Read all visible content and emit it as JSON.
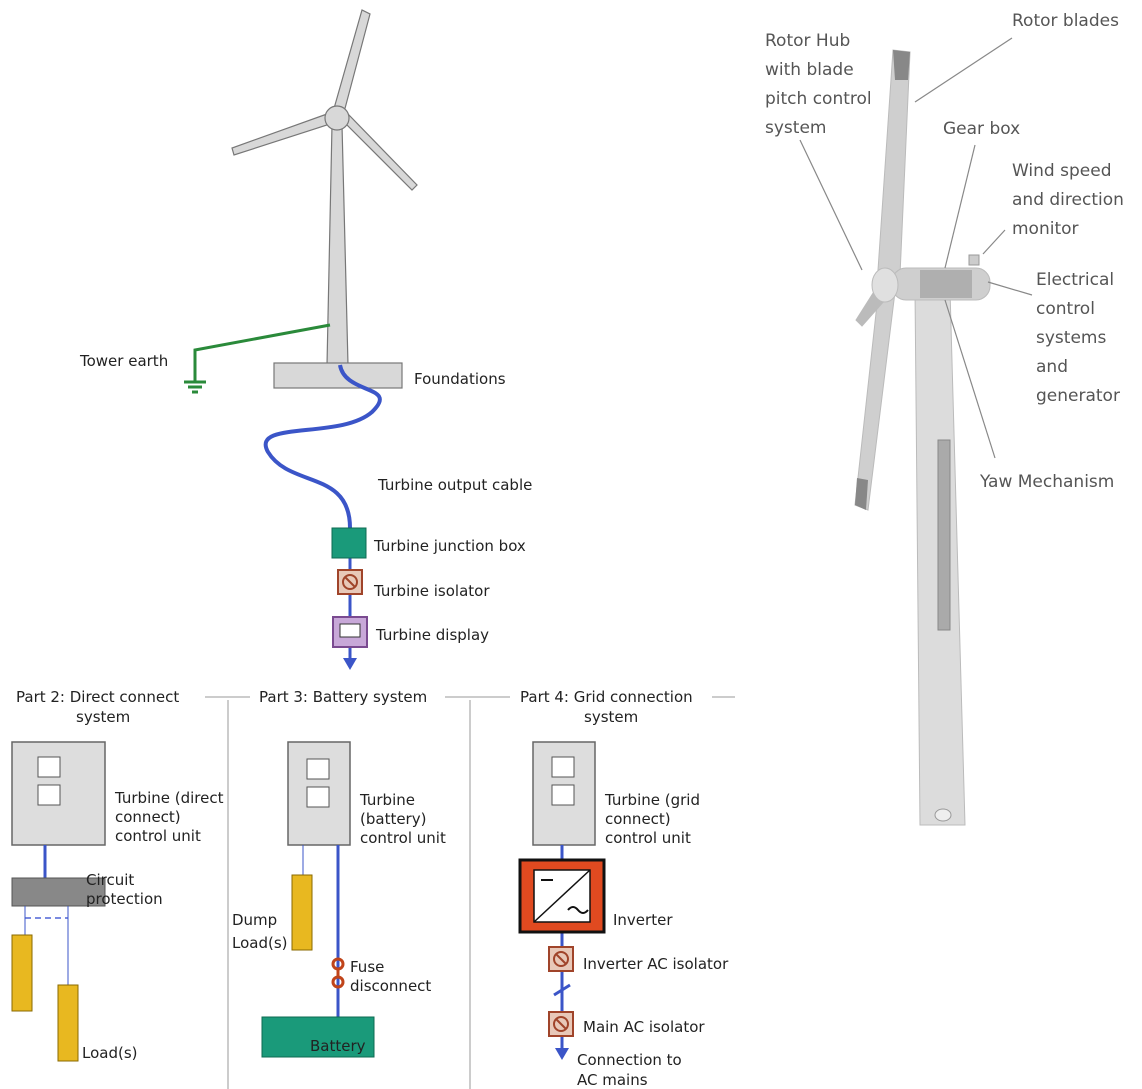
{
  "turbine_system": {
    "tower_earth": "Tower earth",
    "foundations": "Foundations",
    "output_cable": "Turbine output cable",
    "junction_box": "Turbine junction box",
    "isolator": "Turbine isolator",
    "display": "Turbine display"
  },
  "parts": [
    {
      "title": [
        "Part 2: Direct connect",
        "system"
      ],
      "control_unit": [
        "Turbine (direct",
        "connect)",
        "control unit"
      ],
      "circuit_protection": [
        "Circuit",
        "protection"
      ],
      "loads": "Load(s)"
    },
    {
      "title": [
        "Part 3: Battery system"
      ],
      "control_unit": [
        "Turbine",
        "(battery)",
        "control unit"
      ],
      "dump_loads": [
        "Dump",
        "Load(s)"
      ],
      "fuse": [
        "Fuse",
        "disconnect"
      ],
      "battery": "Battery"
    },
    {
      "title": [
        "Part 4: Grid connection",
        "system"
      ],
      "control_unit": [
        "Turbine (grid",
        "connect)",
        "control unit"
      ],
      "inverter": "Inverter",
      "inverter_ac_isolator": "Inverter AC isolator",
      "main_ac_isolator": "Main AC isolator",
      "connection": [
        "Connection to",
        "AC mains"
      ]
    }
  ],
  "turbine_components": {
    "rotor_blades": "Rotor blades",
    "rotor_hub": [
      "Rotor Hub",
      "with blade",
      "pitch control",
      "system"
    ],
    "gear_box": "Gear box",
    "wind_monitor": [
      "Wind speed",
      "and direction",
      "monitor"
    ],
    "electrical": [
      "Electrical",
      "control",
      "systems",
      "and",
      "generator"
    ],
    "yaw": "Yaw Mechanism"
  }
}
